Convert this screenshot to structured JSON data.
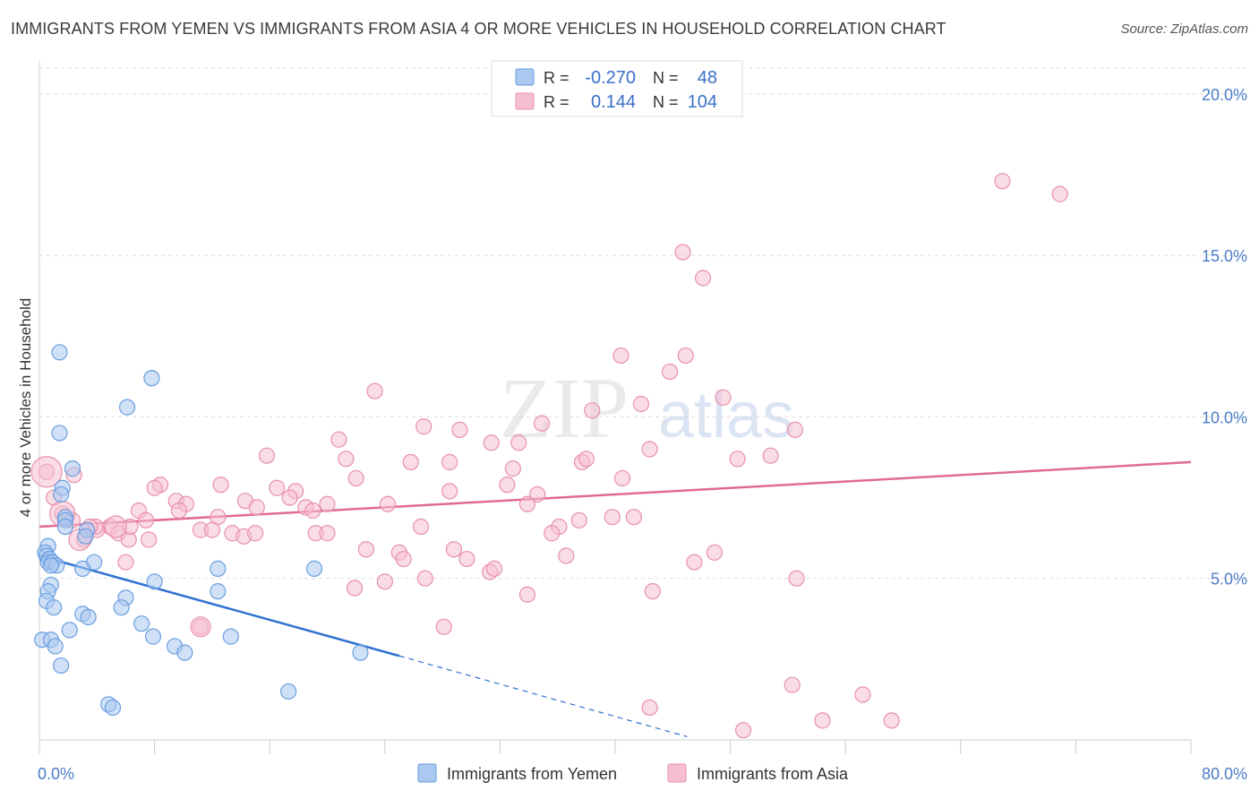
{
  "title": "IMMIGRANTS FROM YEMEN VS IMMIGRANTS FROM ASIA 4 OR MORE VEHICLES IN HOUSEHOLD CORRELATION CHART",
  "source": "Source: ZipAtlas.com",
  "watermark": {
    "zip": "ZIP",
    "atlas": "atlas"
  },
  "chart_data": {
    "type": "scatter",
    "title": "IMMIGRANTS FROM YEMEN VS IMMIGRANTS FROM ASIA 4 OR MORE VEHICLES IN HOUSEHOLD CORRELATION CHART",
    "xlabel": "",
    "ylabel": "4 or more Vehicles in Household",
    "xlim": [
      0,
      80
    ],
    "ylim": [
      0,
      20.8
    ],
    "x_tick_labels": {
      "min": "0.0%",
      "max": "80.0%"
    },
    "y_ticks": [
      5,
      10,
      15,
      20
    ],
    "y_tick_labels": [
      "5.0%",
      "10.0%",
      "15.0%",
      "20.0%"
    ],
    "legend": {
      "placement": "top-center",
      "entries": [
        {
          "r_label": "R =",
          "r_value": "-0.270",
          "n_label": "N =",
          "n_value": "48"
        },
        {
          "r_label": "R =",
          "r_value": "0.144",
          "n_label": "N =",
          "n_value": "104"
        }
      ]
    },
    "bottom_legend": [
      "Immigrants from Yemen",
      "Immigrants from Asia"
    ],
    "colors": {
      "yemen_fill": "#aac8f0",
      "yemen_stroke": "#6a9ee0",
      "yemen_line": "#2f72d0",
      "asia_fill": "#f6bfd0",
      "asia_stroke": "#e890ab",
      "asia_line": "#e06a92",
      "grid": "#dddddd",
      "axis": "#cccccc"
    },
    "series": [
      {
        "name": "Immigrants from Yemen",
        "trend": {
          "x0": 0,
          "y0": 5.7,
          "x1": 25,
          "y1": 2.6,
          "dash_to_x": 45,
          "dash_to_y": 0.1
        },
        "points": [
          [
            1.4,
            12.0
          ],
          [
            7.8,
            11.2
          ],
          [
            6.1,
            10.3
          ],
          [
            1.4,
            9.5
          ],
          [
            2.3,
            8.4
          ],
          [
            1.6,
            7.8
          ],
          [
            1.5,
            7.6
          ],
          [
            1.8,
            6.9
          ],
          [
            1.8,
            6.8
          ],
          [
            1.8,
            6.6
          ],
          [
            3.3,
            6.5
          ],
          [
            3.2,
            6.3
          ],
          [
            0.6,
            6.0
          ],
          [
            0.4,
            5.8
          ],
          [
            0.5,
            5.7
          ],
          [
            0.7,
            5.6
          ],
          [
            0.6,
            5.5
          ],
          [
            0.9,
            5.5
          ],
          [
            1.2,
            5.4
          ],
          [
            0.8,
            5.4
          ],
          [
            3.8,
            5.5
          ],
          [
            3.0,
            5.3
          ],
          [
            12.4,
            5.3
          ],
          [
            19.1,
            5.3
          ],
          [
            8.0,
            4.9
          ],
          [
            0.8,
            4.8
          ],
          [
            0.6,
            4.6
          ],
          [
            12.4,
            4.6
          ],
          [
            6.0,
            4.4
          ],
          [
            0.5,
            4.3
          ],
          [
            1.0,
            4.1
          ],
          [
            5.7,
            4.1
          ],
          [
            3.0,
            3.9
          ],
          [
            3.4,
            3.8
          ],
          [
            7.1,
            3.6
          ],
          [
            2.1,
            3.4
          ],
          [
            7.9,
            3.2
          ],
          [
            13.3,
            3.2
          ],
          [
            0.2,
            3.1
          ],
          [
            0.8,
            3.1
          ],
          [
            1.1,
            2.9
          ],
          [
            9.4,
            2.9
          ],
          [
            10.1,
            2.7
          ],
          [
            22.3,
            2.7
          ],
          [
            1.5,
            2.3
          ],
          [
            17.3,
            1.5
          ],
          [
            4.8,
            1.1
          ],
          [
            5.1,
            1.0
          ]
        ]
      },
      {
        "name": "Immigrants from Asia",
        "trend": {
          "x0": 0,
          "y0": 6.6,
          "x1": 80,
          "y1": 8.6
        },
        "points": [
          [
            66.9,
            17.3
          ],
          [
            70.9,
            16.9
          ],
          [
            44.7,
            15.1
          ],
          [
            46.1,
            14.3
          ],
          [
            40.4,
            11.9
          ],
          [
            44.9,
            11.9
          ],
          [
            43.8,
            11.4
          ],
          [
            23.3,
            10.8
          ],
          [
            47.5,
            10.6
          ],
          [
            41.8,
            10.4
          ],
          [
            38.4,
            10.2
          ],
          [
            26.7,
            9.7
          ],
          [
            29.2,
            9.6
          ],
          [
            34.9,
            9.8
          ],
          [
            52.5,
            9.6
          ],
          [
            20.8,
            9.3
          ],
          [
            31.4,
            9.2
          ],
          [
            33.3,
            9.2
          ],
          [
            42.4,
            9.0
          ],
          [
            15.8,
            8.8
          ],
          [
            21.3,
            8.7
          ],
          [
            25.8,
            8.6
          ],
          [
            28.5,
            8.6
          ],
          [
            37.7,
            8.6
          ],
          [
            38.0,
            8.7
          ],
          [
            48.5,
            8.7
          ],
          [
            50.8,
            8.8
          ],
          [
            32.9,
            8.4
          ],
          [
            22.0,
            8.1
          ],
          [
            40.5,
            8.1
          ],
          [
            12.6,
            7.9
          ],
          [
            8.4,
            7.9
          ],
          [
            16.5,
            7.8
          ],
          [
            32.5,
            7.9
          ],
          [
            8.0,
            7.8
          ],
          [
            17.8,
            7.7
          ],
          [
            28.5,
            7.7
          ],
          [
            17.4,
            7.5
          ],
          [
            34.6,
            7.6
          ],
          [
            9.5,
            7.4
          ],
          [
            14.3,
            7.4
          ],
          [
            10.2,
            7.3
          ],
          [
            20.0,
            7.3
          ],
          [
            9.7,
            7.1
          ],
          [
            15.1,
            7.2
          ],
          [
            18.5,
            7.2
          ],
          [
            19.0,
            7.1
          ],
          [
            24.2,
            7.3
          ],
          [
            33.9,
            7.3
          ],
          [
            2.4,
            8.2
          ],
          [
            1.6,
            7.0
          ],
          [
            6.9,
            7.1
          ],
          [
            12.4,
            6.9
          ],
          [
            39.8,
            6.9
          ],
          [
            41.3,
            6.9
          ],
          [
            37.5,
            6.8
          ],
          [
            36.1,
            6.6
          ],
          [
            26.5,
            6.6
          ],
          [
            4.9,
            6.6
          ],
          [
            5.5,
            6.4
          ],
          [
            4.0,
            6.5
          ],
          [
            11.2,
            6.5
          ],
          [
            12.0,
            6.5
          ],
          [
            13.4,
            6.4
          ],
          [
            14.2,
            6.3
          ],
          [
            15.0,
            6.4
          ],
          [
            19.2,
            6.4
          ],
          [
            20.0,
            6.4
          ],
          [
            35.6,
            6.4
          ],
          [
            6.2,
            6.2
          ],
          [
            7.6,
            6.2
          ],
          [
            3.1,
            6.2
          ],
          [
            2.3,
            6.8
          ],
          [
            3.9,
            6.6
          ],
          [
            22.7,
            5.9
          ],
          [
            25.0,
            5.8
          ],
          [
            28.8,
            5.9
          ],
          [
            46.9,
            5.8
          ],
          [
            25.3,
            5.6
          ],
          [
            29.7,
            5.6
          ],
          [
            36.6,
            5.7
          ],
          [
            6.0,
            5.5
          ],
          [
            45.5,
            5.5
          ],
          [
            31.3,
            5.2
          ],
          [
            31.6,
            5.3
          ],
          [
            26.8,
            5.0
          ],
          [
            52.6,
            5.0
          ],
          [
            24.0,
            4.9
          ],
          [
            21.9,
            4.7
          ],
          [
            42.6,
            4.6
          ],
          [
            33.9,
            4.5
          ],
          [
            11.2,
            3.5
          ],
          [
            28.1,
            3.5
          ],
          [
            52.3,
            1.7
          ],
          [
            42.4,
            1.0
          ],
          [
            57.2,
            1.4
          ],
          [
            48.9,
            0.3
          ],
          [
            54.4,
            0.6
          ],
          [
            59.2,
            0.6
          ],
          [
            0.5,
            8.3
          ],
          [
            1.0,
            7.5
          ],
          [
            3.5,
            6.6
          ],
          [
            6.3,
            6.6
          ],
          [
            7.4,
            6.8
          ]
        ]
      }
    ]
  }
}
